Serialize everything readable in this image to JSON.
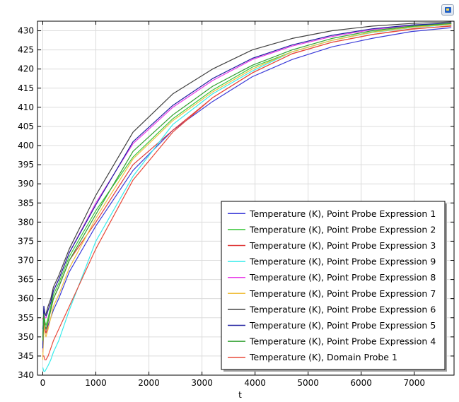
{
  "chart_data": {
    "type": "line",
    "xlabel": "t",
    "ylabel": "",
    "xlim": [
      -100,
      7750
    ],
    "ylim": [
      340,
      432.5
    ],
    "xticks": [
      0,
      1000,
      2000,
      3000,
      4000,
      5000,
      6000,
      7000
    ],
    "yticks": [
      340,
      345,
      350,
      355,
      360,
      365,
      370,
      375,
      380,
      385,
      390,
      395,
      400,
      405,
      410,
      415,
      420,
      425,
      430
    ],
    "grid": true,
    "legend_position": "bottom-right",
    "series": [
      {
        "name": "Temperature (K), Point Probe Expression 1",
        "color": "#3a3ad8",
        "x": [
          0,
          20,
          40,
          60,
          80,
          100,
          150,
          200,
          300,
          500,
          1000,
          1700,
          2450,
          3200,
          3950,
          4700,
          5450,
          6200,
          6950,
          7700
        ],
        "y": [
          352,
          355,
          352,
          351,
          352,
          353,
          355,
          357,
          360,
          367,
          379,
          393.5,
          404,
          411.5,
          418,
          422.5,
          425.8,
          428,
          429.8,
          430.8
        ]
      },
      {
        "name": "Temperature (K), Point Probe Expression 2",
        "color": "#3cc83c",
        "x": [
          0,
          20,
          40,
          60,
          80,
          100,
          150,
          200,
          300,
          500,
          1000,
          1700,
          2450,
          3200,
          3950,
          4700,
          5450,
          6200,
          6950,
          7700
        ],
        "y": [
          348,
          357,
          354,
          353,
          354,
          355,
          358,
          361,
          364,
          371,
          383,
          397,
          407,
          414.5,
          420.5,
          424.5,
          427.5,
          429.7,
          431,
          431.8
        ]
      },
      {
        "name": "Temperature (K), Point Probe Expression 3",
        "color": "#e03a3a",
        "x": [
          0,
          20,
          40,
          60,
          80,
          100,
          150,
          200,
          300,
          500,
          1000,
          1700,
          2450,
          3200,
          3950,
          4700,
          5450,
          6200,
          6950,
          7700
        ],
        "y": [
          355,
          354,
          352,
          351,
          352,
          354,
          357,
          360,
          363,
          370,
          380,
          395,
          404,
          412.5,
          419,
          424,
          427,
          429,
          430.5,
          431.2
        ]
      },
      {
        "name": "Temperature (K), Point Probe Expression 9",
        "color": "#38ecec",
        "x": [
          0,
          20,
          40,
          60,
          80,
          100,
          150,
          200,
          300,
          500,
          1000,
          1700,
          2450,
          3200,
          3950,
          4700,
          5450,
          6200,
          6950,
          7700
        ],
        "y": [
          342,
          341,
          341,
          341.5,
          342,
          342.5,
          344,
          346,
          349,
          357,
          375,
          392,
          405.5,
          413.5,
          419.5,
          424.5,
          427.5,
          429.5,
          430.8,
          431.6
        ]
      },
      {
        "name": "Temperature (K), Point Probe Expression 8",
        "color": "#e83ae8",
        "x": [
          0,
          20,
          40,
          60,
          80,
          100,
          150,
          200,
          300,
          500,
          1000,
          1700,
          2450,
          3200,
          3950,
          4700,
          5450,
          6200,
          6950,
          7700
        ],
        "y": [
          346,
          357,
          355,
          355,
          356,
          357,
          359,
          362,
          365,
          372,
          385,
          400.5,
          410,
          417,
          422.5,
          426,
          428.5,
          430.3,
          431.4,
          432
        ]
      },
      {
        "name": "Temperature (K), Point Probe Expression 7",
        "color": "#f0c040",
        "x": [
          0,
          20,
          40,
          60,
          80,
          100,
          150,
          200,
          300,
          500,
          1000,
          1700,
          2450,
          3200,
          3950,
          4700,
          5450,
          6200,
          6950,
          7700
        ],
        "y": [
          344,
          353,
          351,
          350,
          351,
          352,
          355,
          358,
          361,
          368,
          381,
          396.5,
          406.5,
          414,
          420,
          424.5,
          427.5,
          429.6,
          430.9,
          431.7
        ]
      },
      {
        "name": "Temperature (K), Point Probe Expression 6",
        "color": "#404040",
        "x": [
          0,
          20,
          40,
          60,
          80,
          100,
          150,
          200,
          300,
          500,
          1000,
          1700,
          2450,
          3200,
          3950,
          4700,
          5450,
          6200,
          6950,
          7700
        ],
        "y": [
          350,
          358,
          356,
          356,
          357,
          358,
          360,
          363,
          366,
          373,
          387,
          403.5,
          413.5,
          420,
          425,
          428,
          430,
          431.2,
          431.9,
          432.3
        ]
      },
      {
        "name": "Temperature (K), Point Probe Expression 5",
        "color": "#2020a0",
        "x": [
          0,
          20,
          40,
          60,
          80,
          100,
          150,
          200,
          300,
          500,
          1000,
          1700,
          2450,
          3200,
          3950,
          4700,
          5450,
          6200,
          6950,
          7700
        ],
        "y": [
          347,
          358,
          356,
          355.5,
          356,
          357,
          359,
          362,
          365,
          372,
          384.5,
          401,
          410.5,
          417.5,
          422.8,
          426.3,
          428.8,
          430.5,
          431.5,
          432
        ]
      },
      {
        "name": "Temperature (K), Point Probe Expression 4",
        "color": "#30a030",
        "x": [
          0,
          20,
          40,
          60,
          80,
          100,
          150,
          200,
          300,
          500,
          1000,
          1700,
          2450,
          3200,
          3950,
          4700,
          5450,
          6200,
          6950,
          7700
        ],
        "y": [
          349,
          356,
          353,
          352,
          353,
          354,
          357,
          360,
          363,
          370,
          382,
          398.5,
          408,
          415.5,
          421,
          425,
          428,
          430,
          431.2,
          431.9
        ]
      },
      {
        "name": "Temperature (K), Domain Probe 1",
        "color": "#e84a3a",
        "x": [
          0,
          20,
          40,
          60,
          80,
          100,
          150,
          200,
          300,
          500,
          1000,
          1700,
          2450,
          3200,
          3950,
          4700,
          5450,
          6200,
          6950,
          7700
        ],
        "y": [
          345,
          345,
          344,
          344,
          344.5,
          345,
          347,
          349,
          352,
          358,
          373,
          391,
          403.5,
          412.5,
          419,
          424,
          427,
          429,
          430.4,
          431.3
        ]
      }
    ]
  },
  "toolbar": {
    "corner_icon": "image-export-icon"
  }
}
